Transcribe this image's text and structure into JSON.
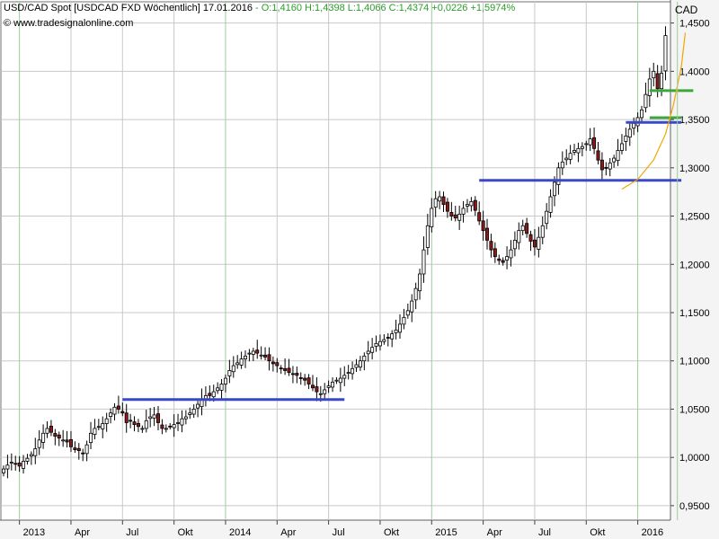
{
  "header": {
    "title": "USD/CAD Spot [USDCAD FXD  Wöchentlich] 17.01.2016",
    "ohlc": "- O:1,4160 H:1,4398 L:1,4066 C:1,4374 +0,0226 +1,5974%",
    "source": "www.tradesignalonline.com",
    "currency": "CAD"
  },
  "colors": {
    "up_fill": "#ffffff",
    "down_fill": "#8b1a1a",
    "candle_line": "#000000",
    "support_line": "#3a48c8",
    "green_line": "#3aa83a",
    "curve": "#f0a500",
    "grid": "#c8c8c8",
    "vgrid_highlight": "#9ccc9c"
  },
  "chart_data": {
    "type": "candlestick",
    "timeframe": "weekly",
    "ylim": [
      0.935,
      1.472
    ],
    "ytick_values": [
      0.95,
      1.0,
      1.05,
      1.1,
      1.15,
      1.2,
      1.25,
      1.3,
      1.35,
      1.4,
      1.45
    ],
    "ytick_labels": [
      "0,9500",
      "1,0000",
      "1,0500",
      "1,1000",
      "1,1500",
      "1,2000",
      "1,2500",
      "1,3000",
      "1,3500",
      "1,4000",
      "1,4500"
    ],
    "xlabels": [
      "2013",
      "Apr",
      "Jul",
      "Okt",
      "2014",
      "Apr",
      "Jul",
      "Okt",
      "2015",
      "Apr",
      "Jul",
      "Okt",
      "2016"
    ],
    "xlabel_week_index": [
      4,
      17,
      30,
      43,
      56,
      69,
      82,
      95,
      108,
      121,
      134,
      147,
      160
    ],
    "closes": [
      0.988,
      0.992,
      0.995,
      0.993,
      0.991,
      0.996,
      0.999,
      1.003,
      1.009,
      1.018,
      1.025,
      1.03,
      1.026,
      1.022,
      1.02,
      1.018,
      1.016,
      1.011,
      1.008,
      1.007,
      1.004,
      1.013,
      1.025,
      1.03,
      1.032,
      1.035,
      1.04,
      1.046,
      1.052,
      1.05,
      1.046,
      1.036,
      1.038,
      1.034,
      1.032,
      1.03,
      1.038,
      1.042,
      1.044,
      1.036,
      1.03,
      1.03,
      1.032,
      1.034,
      1.036,
      1.04,
      1.042,
      1.046,
      1.05,
      1.055,
      1.06,
      1.064,
      1.064,
      1.068,
      1.072,
      1.076,
      1.082,
      1.09,
      1.095,
      1.098,
      1.102,
      1.105,
      1.108,
      1.11,
      1.108,
      1.106,
      1.104,
      1.1,
      1.097,
      1.095,
      1.092,
      1.09,
      1.088,
      1.086,
      1.085,
      1.082,
      1.08,
      1.076,
      1.072,
      1.068,
      1.066,
      1.07,
      1.074,
      1.078,
      1.08,
      1.082,
      1.085,
      1.088,
      1.092,
      1.096,
      1.1,
      1.105,
      1.11,
      1.114,
      1.118,
      1.12,
      1.122,
      1.124,
      1.128,
      1.132,
      1.138,
      1.145,
      1.152,
      1.162,
      1.175,
      1.19,
      1.215,
      1.24,
      1.258,
      1.268,
      1.27,
      1.262,
      1.255,
      1.25,
      1.248,
      1.252,
      1.258,
      1.262,
      1.265,
      1.256,
      1.245,
      1.235,
      1.225,
      1.215,
      1.208,
      1.204,
      1.202,
      1.208,
      1.215,
      1.225,
      1.235,
      1.24,
      1.232,
      1.224,
      1.218,
      1.228,
      1.24,
      1.255,
      1.27,
      1.285,
      1.3,
      1.306,
      1.31,
      1.315,
      1.318,
      1.32,
      1.322,
      1.325,
      1.33,
      1.32,
      1.308,
      1.298,
      1.3,
      1.305,
      1.31,
      1.318,
      1.325,
      1.333,
      1.34,
      1.346,
      1.352,
      1.36,
      1.376,
      1.392,
      1.4,
      1.382,
      1.398,
      1.437
    ],
    "support_lines": [
      {
        "level": 1.06,
        "from_week": 30,
        "to_week": 86
      },
      {
        "level": 1.287,
        "from_week": 120,
        "to_week": 171
      },
      {
        "level": 1.347,
        "from_week": 157,
        "to_week": 171
      }
    ],
    "green_lines": [
      {
        "level": 1.38,
        "from_week": 163,
        "to_week": 174
      },
      {
        "level": 1.352,
        "from_week": 163,
        "to_week": 171
      }
    ],
    "curve": [
      {
        "week": 156,
        "price": 1.278
      },
      {
        "week": 160,
        "price": 1.288
      },
      {
        "week": 164,
        "price": 1.308
      },
      {
        "week": 167,
        "price": 1.335
      },
      {
        "week": 169,
        "price": 1.365
      },
      {
        "week": 171,
        "price": 1.405
      },
      {
        "week": 172,
        "price": 1.44
      }
    ],
    "last_week": 170
  }
}
